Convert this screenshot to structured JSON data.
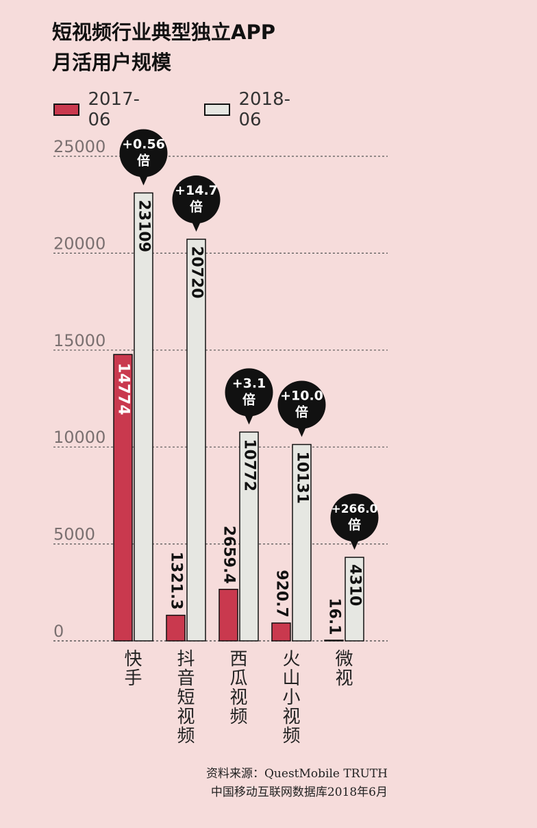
{
  "title_line1": "短视频行业典型独立APP",
  "title_line2": "月活用户规模",
  "source_line1": "资料来源：QuestMobile TRUTH",
  "source_line2": "中国移动互联网数据库2018年6月",
  "colors": {
    "background": "#f6dcdb",
    "series_2017": "#c9394e",
    "series_2018": "#e6e7e2",
    "bubble": "#111111",
    "gridline": "#555555"
  },
  "chart_data": {
    "type": "bar",
    "title": "短视频行业典型独立APP 月活用户规模",
    "xlabel": "",
    "ylabel": "",
    "ylim": [
      0,
      25000
    ],
    "yticks": [
      0,
      5000,
      10000,
      15000,
      20000,
      25000
    ],
    "grid": true,
    "legend_position": "top-left",
    "categories": [
      "快手",
      "抖音短视频",
      "西瓜视频",
      "火山小视频",
      "微视"
    ],
    "series": [
      {
        "name": "2017-06",
        "values": [
          14774,
          1321.3,
          2659.4,
          920.7,
          16.1
        ],
        "labels": [
          "14774",
          "1321.3",
          "2659.4",
          "920.7",
          "16.1"
        ]
      },
      {
        "name": "2018-06",
        "values": [
          23109,
          20720,
          10772,
          10131,
          4310
        ],
        "labels": [
          "23109",
          "20720",
          "10772",
          "10131",
          "4310"
        ]
      }
    ],
    "growth_labels": [
      "+0.56",
      "+14.7",
      "+3.1",
      "+10.0",
      "+266.0"
    ],
    "growth_unit": "倍"
  }
}
